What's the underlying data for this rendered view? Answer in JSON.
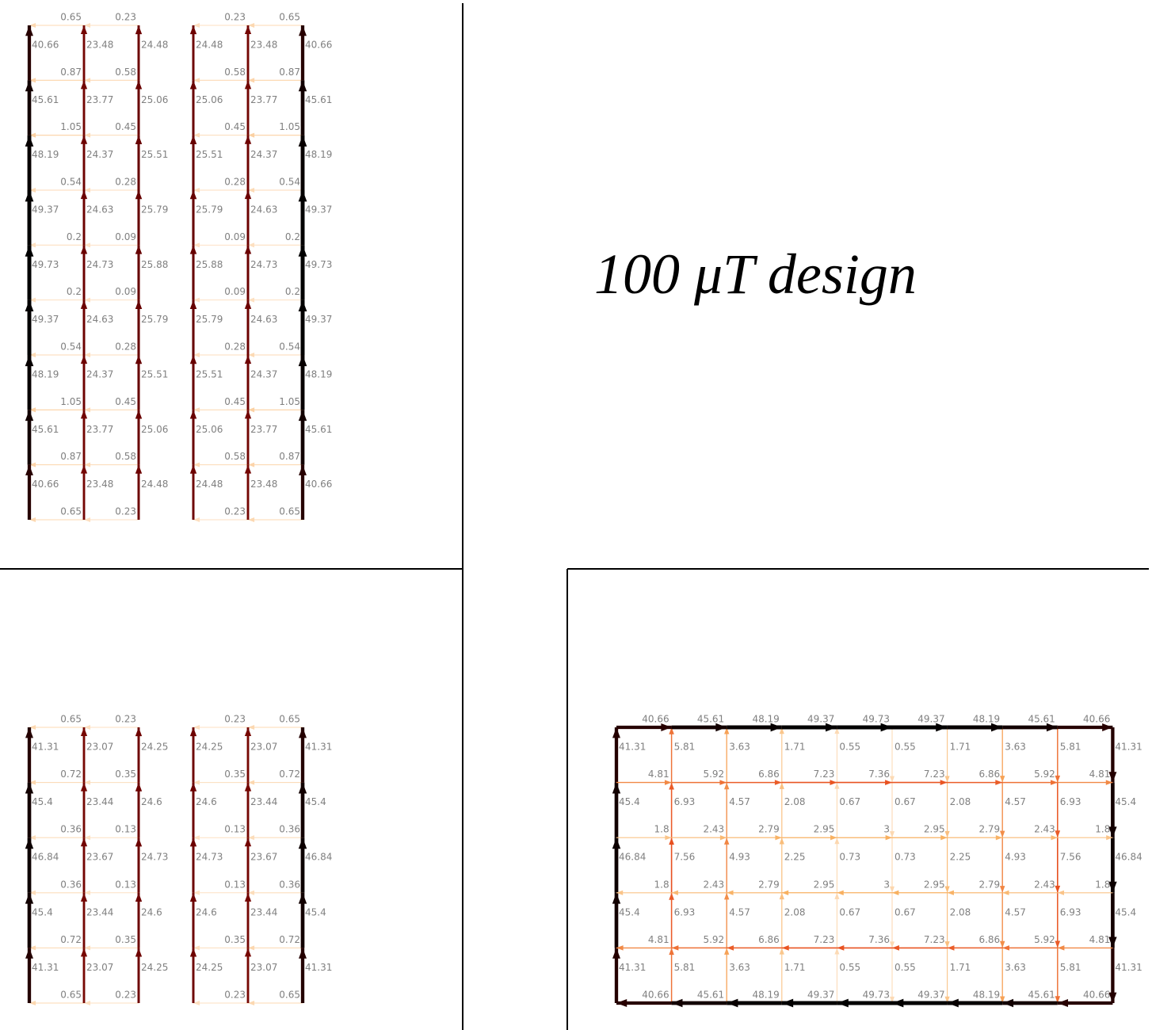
{
  "annotation": "100 μT design",
  "top_left": {
    "ladders": [
      {
        "verticals": [
          [
            40.66,
            45.61,
            48.19,
            49.37,
            49.73,
            49.37,
            48.19,
            45.61,
            40.66
          ],
          [
            23.48,
            23.77,
            24.37,
            24.63,
            24.73,
            24.63,
            24.37,
            23.77,
            23.48
          ],
          [
            24.48,
            25.06,
            25.51,
            25.79,
            25.88,
            25.79,
            25.51,
            25.06,
            24.48
          ]
        ],
        "horizontals": [
          [
            0.65,
            0.87,
            1.05,
            0.54,
            0.2,
            0.2,
            0.54,
            1.05,
            0.87,
            0.65
          ],
          [
            0.23,
            0.58,
            0.45,
            0.28,
            0.09,
            0.09,
            0.28,
            0.45,
            0.58,
            0.23
          ]
        ]
      },
      {
        "verticals": [
          [
            24.48,
            25.06,
            25.51,
            25.79,
            25.88,
            25.79,
            25.51,
            25.06,
            24.48
          ],
          [
            23.48,
            23.77,
            24.37,
            24.63,
            24.73,
            24.63,
            24.37,
            23.77,
            23.48
          ],
          [
            40.66,
            45.61,
            48.19,
            49.37,
            49.73,
            49.37,
            48.19,
            45.61,
            40.66
          ]
        ],
        "horizontals": [
          [
            0.23,
            0.58,
            0.45,
            0.28,
            0.09,
            0.09,
            0.28,
            0.45,
            0.58,
            0.23
          ],
          [
            0.65,
            0.87,
            1.05,
            0.54,
            0.2,
            0.2,
            0.54,
            1.05,
            0.87,
            0.65
          ]
        ]
      }
    ]
  },
  "bottom_left": {
    "ladders": [
      {
        "verticals": [
          [
            41.31,
            45.4,
            46.84,
            45.4,
            41.31
          ],
          [
            23.07,
            23.44,
            23.67,
            23.44,
            23.07
          ],
          [
            24.25,
            24.6,
            24.73,
            24.6,
            24.25
          ]
        ],
        "horizontals": [
          [
            0.65,
            0.72,
            0.36,
            0.36,
            0.72,
            0.65
          ],
          [
            0.23,
            0.35,
            0.13,
            0.13,
            0.35,
            0.23
          ]
        ]
      },
      {
        "verticals": [
          [
            24.25,
            24.6,
            24.73,
            24.6,
            24.25
          ],
          [
            23.07,
            23.44,
            23.67,
            23.44,
            23.07
          ],
          [
            41.31,
            45.4,
            46.84,
            45.4,
            41.31
          ]
        ],
        "horizontals": [
          [
            0.23,
            0.35,
            0.13,
            0.13,
            0.35,
            0.23
          ],
          [
            0.65,
            0.72,
            0.36,
            0.36,
            0.72,
            0.65
          ]
        ]
      }
    ]
  },
  "bottom_right": {
    "horizontals": [
      [
        40.66,
        45.61,
        48.19,
        49.37,
        49.73,
        49.37,
        48.19,
        45.61,
        40.66
      ],
      [
        4.81,
        5.92,
        6.86,
        7.23,
        7.36,
        7.23,
        6.86,
        5.92,
        4.81
      ],
      [
        1.8,
        2.43,
        2.79,
        2.95,
        3.0,
        2.95,
        2.79,
        2.43,
        1.8
      ],
      [
        1.8,
        2.43,
        2.79,
        2.95,
        3.0,
        2.95,
        2.79,
        2.43,
        1.8
      ],
      [
        4.81,
        5.92,
        6.86,
        7.23,
        7.36,
        7.23,
        6.86,
        5.92,
        4.81
      ],
      [
        40.66,
        45.61,
        48.19,
        49.37,
        49.73,
        49.37,
        48.19,
        45.61,
        40.66
      ]
    ],
    "verticals": [
      [
        41.31,
        5.81,
        3.63,
        1.71,
        0.55,
        0.55,
        1.71,
        3.63,
        5.81,
        41.31
      ],
      [
        45.4,
        6.93,
        4.57,
        2.08,
        0.67,
        0.67,
        2.08,
        4.57,
        6.93,
        45.4
      ],
      [
        46.84,
        7.56,
        4.93,
        2.25,
        0.73,
        0.73,
        2.25,
        4.93,
        7.56,
        46.84
      ],
      [
        45.4,
        6.93,
        4.57,
        2.08,
        0.67,
        0.67,
        2.08,
        4.57,
        6.93,
        45.4
      ],
      [
        41.31,
        5.81,
        3.63,
        1.71,
        0.55,
        0.55,
        1.71,
        3.63,
        5.81,
        41.31
      ]
    ]
  }
}
